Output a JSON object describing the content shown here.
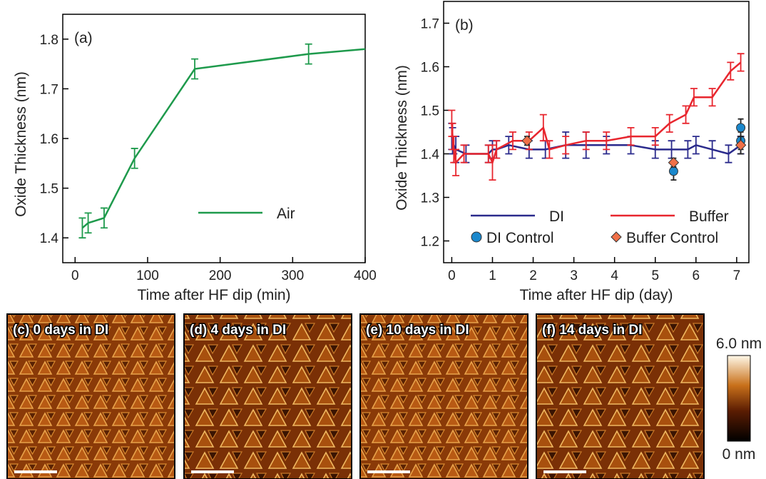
{
  "chart_data": [
    {
      "type": "line",
      "panel_label": "(a)",
      "x_label": "Time after HF dip (min)",
      "y_label": "Oxide Thickness (nm)",
      "xlim": [
        -17,
        400
      ],
      "xticks": [
        0,
        100,
        200,
        300,
        400
      ],
      "ylim": [
        1.35,
        1.85
      ],
      "yticks": [
        1.4,
        1.5,
        1.6,
        1.7,
        1.8
      ],
      "legend": "center right",
      "series": [
        {
          "name": "Air",
          "color": "#1e9a4c",
          "mode": "line",
          "x": [
            10,
            18,
            40,
            82,
            165,
            322,
            400
          ],
          "values": [
            1.42,
            1.43,
            1.44,
            1.56,
            1.74,
            1.77,
            1.78
          ],
          "errors": [
            0.02,
            0.02,
            0.02,
            0.02,
            0.02,
            0.02,
            null
          ]
        }
      ]
    },
    {
      "type": "line",
      "panel_label": "(b)",
      "x_label": "Time after HF dip (day)",
      "y_label": "Oxide Thickness (nm)",
      "xlim": [
        -0.2,
        7.3
      ],
      "xticks": [
        0,
        1,
        2,
        3,
        4,
        5,
        6,
        7
      ],
      "ylim": [
        1.15,
        1.75
      ],
      "yticks": [
        1.2,
        1.3,
        1.4,
        1.5,
        1.6,
        1.7
      ],
      "legend": "lower center",
      "series": [
        {
          "name": "DI",
          "color": "#2a2a8c",
          "mode": "line",
          "x": [
            0,
            0.02,
            0.05,
            0.1,
            0.35,
            0.9,
            1.0,
            1.1,
            1.4,
            1.9,
            2.3,
            2.8,
            3.3,
            3.8,
            4.4,
            5.0,
            5.4,
            5.8,
            6.0,
            6.4,
            6.8,
            7.1
          ],
          "values": [
            1.44,
            1.43,
            1.42,
            1.41,
            1.4,
            1.4,
            1.41,
            1.41,
            1.42,
            1.41,
            1.41,
            1.42,
            1.42,
            1.42,
            1.42,
            1.41,
            1.41,
            1.41,
            1.42,
            1.41,
            1.4,
            1.42
          ],
          "errors": [
            0.03,
            0.03,
            0.02,
            0.03,
            0.02,
            0.02,
            0.02,
            0.02,
            0.02,
            0.02,
            0.02,
            0.03,
            0.03,
            0.02,
            0.02,
            0.02,
            0.02,
            0.02,
            0.02,
            0.02,
            0.02,
            0.02
          ]
        },
        {
          "name": "Buffer",
          "color": "#e8262e",
          "mode": "line",
          "x": [
            0,
            0.02,
            0.05,
            0.1,
            0.3,
            0.9,
            1.0,
            1.1,
            1.5,
            1.9,
            2.25,
            2.4,
            2.8,
            3.3,
            3.8,
            4.4,
            5.0,
            5.35,
            5.75,
            5.95,
            6.4,
            6.85,
            7.1
          ],
          "values": [
            1.47,
            1.44,
            1.41,
            1.38,
            1.4,
            1.4,
            1.38,
            1.41,
            1.43,
            1.43,
            1.46,
            1.41,
            1.42,
            1.43,
            1.43,
            1.44,
            1.44,
            1.47,
            1.49,
            1.53,
            1.53,
            1.59,
            1.61
          ],
          "errors": [
            0.03,
            0.03,
            0.03,
            0.03,
            0.02,
            0.02,
            0.04,
            0.02,
            0.02,
            0.02,
            0.03,
            0.02,
            0.02,
            0.02,
            0.02,
            0.02,
            0.02,
            0.02,
            0.02,
            0.02,
            0.02,
            0.02,
            0.02
          ]
        },
        {
          "name": "DI Control",
          "color": "#1b88cc",
          "mode": "circle",
          "x": [
            5.45,
            7.1,
            7.1
          ],
          "values": [
            1.36,
            1.46,
            1.43
          ],
          "errors": [
            0.02,
            0.02,
            0.02
          ]
        },
        {
          "name": "Buffer Control",
          "color": "#f07048",
          "mode": "diamond",
          "x": [
            1.85,
            5.45,
            7.1
          ],
          "values": [
            1.43,
            1.38,
            1.42
          ],
          "errors": [
            0.01,
            0.01,
            0.02
          ]
        }
      ]
    }
  ],
  "images": [
    {
      "label": "(c) 0 days in DI"
    },
    {
      "label": "(d) 4 days in DI"
    },
    {
      "label": "(e) 10 days in DI"
    },
    {
      "label": "(f) 14 days in DI"
    }
  ],
  "colorbar": {
    "max_label": "6.0 nm",
    "min_label": "0 nm"
  }
}
